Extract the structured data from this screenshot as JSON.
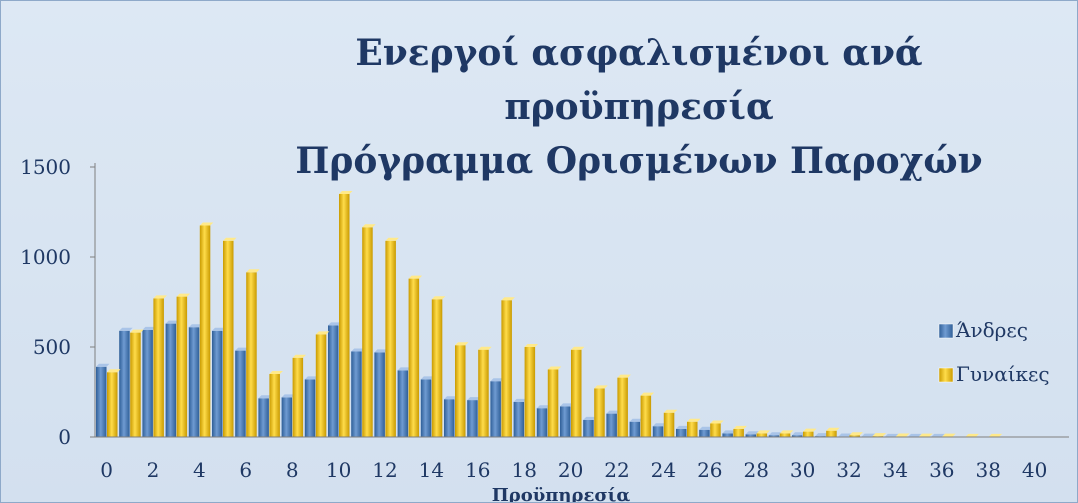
{
  "chart_data": {
    "type": "bar",
    "title": [
      "Ενεργοί ασφαλισμένοι ανά",
      "προϋπηρεσία",
      "Πρόγραμμα Ορισμένων Παροχών"
    ],
    "xlabel": "Προϋπηρεσία",
    "ylabel": "",
    "ylim": [
      0,
      1500
    ],
    "yticks": [
      0,
      500,
      1000,
      1500
    ],
    "xticks": [
      0,
      2,
      4,
      6,
      8,
      10,
      12,
      14,
      16,
      18,
      20,
      22,
      24,
      26,
      28,
      30,
      32,
      34,
      36,
      38,
      40
    ],
    "x": [
      0,
      1,
      2,
      3,
      4,
      5,
      6,
      7,
      8,
      9,
      10,
      11,
      12,
      13,
      14,
      15,
      16,
      17,
      18,
      19,
      20,
      21,
      22,
      23,
      24,
      25,
      26,
      27,
      28,
      29,
      30,
      31,
      32,
      33,
      34,
      35,
      36,
      37,
      38,
      39,
      40
    ],
    "legend_position": "right",
    "grid": false,
    "series": [
      {
        "name": "Άνδρες",
        "color": "#4f81bd",
        "values": [
          390,
          590,
          595,
          630,
          610,
          590,
          480,
          215,
          220,
          320,
          620,
          475,
          470,
          370,
          320,
          210,
          205,
          310,
          195,
          160,
          170,
          95,
          130,
          85,
          60,
          45,
          40,
          20,
          15,
          10,
          10,
          5,
          3,
          2,
          1,
          1,
          1,
          0,
          0,
          0,
          0
        ]
      },
      {
        "name": "Γυναίκες",
        "color": "#f2c20f",
        "values": [
          360,
          580,
          770,
          780,
          1175,
          1090,
          915,
          350,
          440,
          570,
          1350,
          1165,
          1090,
          880,
          765,
          510,
          485,
          760,
          500,
          375,
          485,
          270,
          330,
          230,
          135,
          85,
          75,
          45,
          20,
          20,
          30,
          35,
          10,
          5,
          3,
          2,
          2,
          1,
          1,
          0,
          0
        ]
      }
    ]
  }
}
